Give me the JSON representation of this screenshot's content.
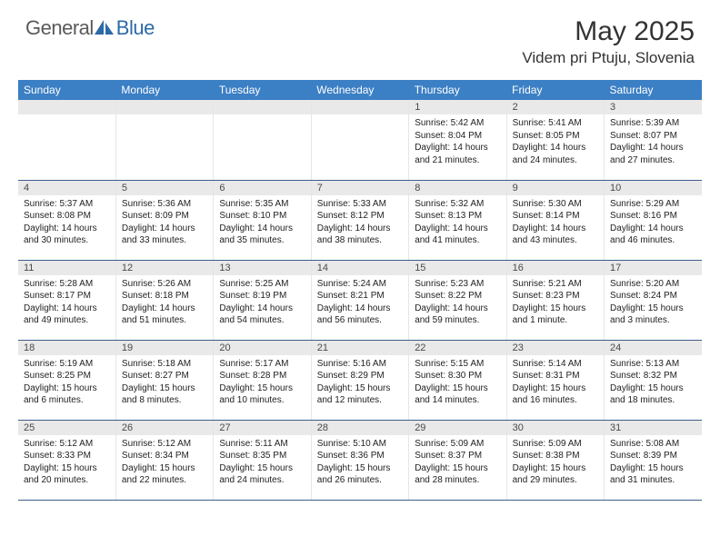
{
  "brand": {
    "general": "General",
    "blue": "Blue"
  },
  "colors": {
    "header_bg": "#3b7fc4",
    "header_text": "#ffffff",
    "daynum_bg": "#e9e9e9",
    "daynum_text": "#4a4a4a",
    "cell_border": "#e6e6e6",
    "row_border_bottom": "#3b5f8a",
    "logo_blue": "#2d6aa8",
    "logo_gray": "#5a5a5a",
    "text": "#222222"
  },
  "title": "May 2025",
  "location": "Videm pri Ptuju, Slovenia",
  "weekdays": [
    "Sunday",
    "Monday",
    "Tuesday",
    "Wednesday",
    "Thursday",
    "Friday",
    "Saturday"
  ],
  "weeks": [
    [
      {
        "empty": true
      },
      {
        "empty": true
      },
      {
        "empty": true
      },
      {
        "empty": true
      },
      {
        "n": "1",
        "sr": "Sunrise: 5:42 AM",
        "ss": "Sunset: 8:04 PM",
        "d1": "Daylight: 14 hours",
        "d2": "and 21 minutes."
      },
      {
        "n": "2",
        "sr": "Sunrise: 5:41 AM",
        "ss": "Sunset: 8:05 PM",
        "d1": "Daylight: 14 hours",
        "d2": "and 24 minutes."
      },
      {
        "n": "3",
        "sr": "Sunrise: 5:39 AM",
        "ss": "Sunset: 8:07 PM",
        "d1": "Daylight: 14 hours",
        "d2": "and 27 minutes."
      }
    ],
    [
      {
        "n": "4",
        "sr": "Sunrise: 5:37 AM",
        "ss": "Sunset: 8:08 PM",
        "d1": "Daylight: 14 hours",
        "d2": "and 30 minutes."
      },
      {
        "n": "5",
        "sr": "Sunrise: 5:36 AM",
        "ss": "Sunset: 8:09 PM",
        "d1": "Daylight: 14 hours",
        "d2": "and 33 minutes."
      },
      {
        "n": "6",
        "sr": "Sunrise: 5:35 AM",
        "ss": "Sunset: 8:10 PM",
        "d1": "Daylight: 14 hours",
        "d2": "and 35 minutes."
      },
      {
        "n": "7",
        "sr": "Sunrise: 5:33 AM",
        "ss": "Sunset: 8:12 PM",
        "d1": "Daylight: 14 hours",
        "d2": "and 38 minutes."
      },
      {
        "n": "8",
        "sr": "Sunrise: 5:32 AM",
        "ss": "Sunset: 8:13 PM",
        "d1": "Daylight: 14 hours",
        "d2": "and 41 minutes."
      },
      {
        "n": "9",
        "sr": "Sunrise: 5:30 AM",
        "ss": "Sunset: 8:14 PM",
        "d1": "Daylight: 14 hours",
        "d2": "and 43 minutes."
      },
      {
        "n": "10",
        "sr": "Sunrise: 5:29 AM",
        "ss": "Sunset: 8:16 PM",
        "d1": "Daylight: 14 hours",
        "d2": "and 46 minutes."
      }
    ],
    [
      {
        "n": "11",
        "sr": "Sunrise: 5:28 AM",
        "ss": "Sunset: 8:17 PM",
        "d1": "Daylight: 14 hours",
        "d2": "and 49 minutes."
      },
      {
        "n": "12",
        "sr": "Sunrise: 5:26 AM",
        "ss": "Sunset: 8:18 PM",
        "d1": "Daylight: 14 hours",
        "d2": "and 51 minutes."
      },
      {
        "n": "13",
        "sr": "Sunrise: 5:25 AM",
        "ss": "Sunset: 8:19 PM",
        "d1": "Daylight: 14 hours",
        "d2": "and 54 minutes."
      },
      {
        "n": "14",
        "sr": "Sunrise: 5:24 AM",
        "ss": "Sunset: 8:21 PM",
        "d1": "Daylight: 14 hours",
        "d2": "and 56 minutes."
      },
      {
        "n": "15",
        "sr": "Sunrise: 5:23 AM",
        "ss": "Sunset: 8:22 PM",
        "d1": "Daylight: 14 hours",
        "d2": "and 59 minutes."
      },
      {
        "n": "16",
        "sr": "Sunrise: 5:21 AM",
        "ss": "Sunset: 8:23 PM",
        "d1": "Daylight: 15 hours",
        "d2": "and 1 minute."
      },
      {
        "n": "17",
        "sr": "Sunrise: 5:20 AM",
        "ss": "Sunset: 8:24 PM",
        "d1": "Daylight: 15 hours",
        "d2": "and 3 minutes."
      }
    ],
    [
      {
        "n": "18",
        "sr": "Sunrise: 5:19 AM",
        "ss": "Sunset: 8:25 PM",
        "d1": "Daylight: 15 hours",
        "d2": "and 6 minutes."
      },
      {
        "n": "19",
        "sr": "Sunrise: 5:18 AM",
        "ss": "Sunset: 8:27 PM",
        "d1": "Daylight: 15 hours",
        "d2": "and 8 minutes."
      },
      {
        "n": "20",
        "sr": "Sunrise: 5:17 AM",
        "ss": "Sunset: 8:28 PM",
        "d1": "Daylight: 15 hours",
        "d2": "and 10 minutes."
      },
      {
        "n": "21",
        "sr": "Sunrise: 5:16 AM",
        "ss": "Sunset: 8:29 PM",
        "d1": "Daylight: 15 hours",
        "d2": "and 12 minutes."
      },
      {
        "n": "22",
        "sr": "Sunrise: 5:15 AM",
        "ss": "Sunset: 8:30 PM",
        "d1": "Daylight: 15 hours",
        "d2": "and 14 minutes."
      },
      {
        "n": "23",
        "sr": "Sunrise: 5:14 AM",
        "ss": "Sunset: 8:31 PM",
        "d1": "Daylight: 15 hours",
        "d2": "and 16 minutes."
      },
      {
        "n": "24",
        "sr": "Sunrise: 5:13 AM",
        "ss": "Sunset: 8:32 PM",
        "d1": "Daylight: 15 hours",
        "d2": "and 18 minutes."
      }
    ],
    [
      {
        "n": "25",
        "sr": "Sunrise: 5:12 AM",
        "ss": "Sunset: 8:33 PM",
        "d1": "Daylight: 15 hours",
        "d2": "and 20 minutes."
      },
      {
        "n": "26",
        "sr": "Sunrise: 5:12 AM",
        "ss": "Sunset: 8:34 PM",
        "d1": "Daylight: 15 hours",
        "d2": "and 22 minutes."
      },
      {
        "n": "27",
        "sr": "Sunrise: 5:11 AM",
        "ss": "Sunset: 8:35 PM",
        "d1": "Daylight: 15 hours",
        "d2": "and 24 minutes."
      },
      {
        "n": "28",
        "sr": "Sunrise: 5:10 AM",
        "ss": "Sunset: 8:36 PM",
        "d1": "Daylight: 15 hours",
        "d2": "and 26 minutes."
      },
      {
        "n": "29",
        "sr": "Sunrise: 5:09 AM",
        "ss": "Sunset: 8:37 PM",
        "d1": "Daylight: 15 hours",
        "d2": "and 28 minutes."
      },
      {
        "n": "30",
        "sr": "Sunrise: 5:09 AM",
        "ss": "Sunset: 8:38 PM",
        "d1": "Daylight: 15 hours",
        "d2": "and 29 minutes."
      },
      {
        "n": "31",
        "sr": "Sunrise: 5:08 AM",
        "ss": "Sunset: 8:39 PM",
        "d1": "Daylight: 15 hours",
        "d2": "and 31 minutes."
      }
    ]
  ]
}
